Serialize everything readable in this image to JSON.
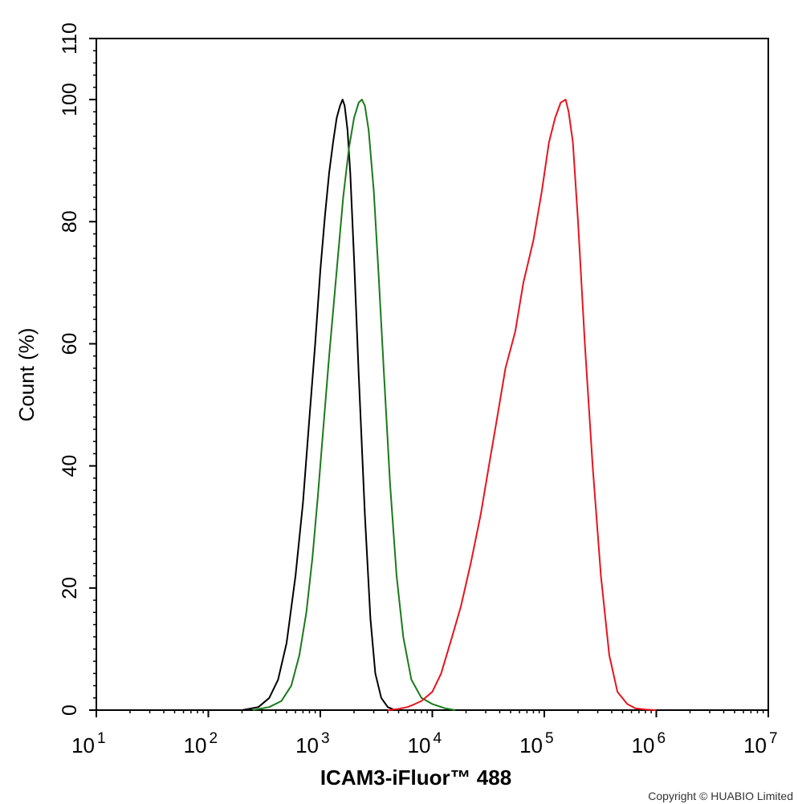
{
  "chart_data": {
    "type": "line",
    "xlabel": "ICAM3-iFluor™ 488",
    "ylabel": "Count  (%)",
    "x_scale": "log",
    "xlim": [
      10,
      10000000
    ],
    "ylim": [
      0,
      110
    ],
    "x_ticks": [
      {
        "base": "10",
        "exp": "1",
        "value": 10
      },
      {
        "base": "10",
        "exp": "2",
        "value": 100
      },
      {
        "base": "10",
        "exp": "3",
        "value": 1000
      },
      {
        "base": "10",
        "exp": "4",
        "value": 10000
      },
      {
        "base": "10",
        "exp": "5",
        "value": 100000
      },
      {
        "base": "10",
        "exp": "6",
        "value": 1000000
      },
      {
        "base": "10",
        "exp": "7",
        "value": 10000000
      }
    ],
    "y_ticks": [
      "0",
      "20",
      "40",
      "60",
      "80",
      "100",
      "110"
    ],
    "grid": false,
    "series": [
      {
        "color": "#000000",
        "x": [
          200,
          280,
          350,
          420,
          500,
          600,
          700,
          800,
          900,
          1000,
          1100,
          1200,
          1300,
          1400,
          1500,
          1580,
          1650,
          1750,
          1850,
          2000,
          2200,
          2500,
          2800,
          3100,
          3500,
          4000,
          4500,
          5000
        ],
        "y": [
          0,
          0.5,
          2,
          5,
          11,
          22,
          34,
          48,
          60,
          72,
          81,
          88,
          93,
          97,
          99,
          100,
          99,
          95,
          88,
          74,
          55,
          32,
          15,
          6,
          2,
          0.5,
          0.1,
          0
        ]
      },
      {
        "color": "#1a7a1a",
        "x": [
          250,
          350,
          450,
          550,
          650,
          750,
          850,
          950,
          1050,
          1200,
          1400,
          1600,
          1800,
          2000,
          2200,
          2350,
          2500,
          2700,
          3000,
          3300,
          3700,
          4200,
          4800,
          5500,
          6500,
          8000,
          10000,
          13000,
          16000
        ],
        "y": [
          0,
          0.5,
          1.5,
          4,
          9,
          16,
          25,
          35,
          45,
          58,
          72,
          84,
          92,
          97,
          99.5,
          100,
          99,
          95,
          85,
          72,
          55,
          37,
          22,
          12,
          5,
          2,
          1,
          0.3,
          0
        ]
      },
      {
        "color": "#e8141e",
        "x": [
          4000,
          5000,
          6000,
          7000,
          8000,
          10000,
          12000,
          15000,
          18000,
          22000,
          27000,
          32000,
          38000,
          45000,
          55000,
          65000,
          80000,
          95000,
          110000,
          125000,
          140000,
          155000,
          165000,
          180000,
          200000,
          230000,
          270000,
          320000,
          380000,
          450000,
          550000,
          650000,
          800000,
          1000000
        ],
        "y": [
          0,
          0.2,
          0.5,
          1,
          1.5,
          3,
          6,
          12,
          17,
          24,
          32,
          40,
          48,
          56,
          62,
          70,
          77,
          85,
          93,
          97,
          99.5,
          100,
          98,
          93,
          80,
          60,
          40,
          22,
          9,
          3,
          1,
          0.3,
          0.1,
          0
        ]
      }
    ]
  },
  "copyright": "Copyright © HUABIO Limited"
}
